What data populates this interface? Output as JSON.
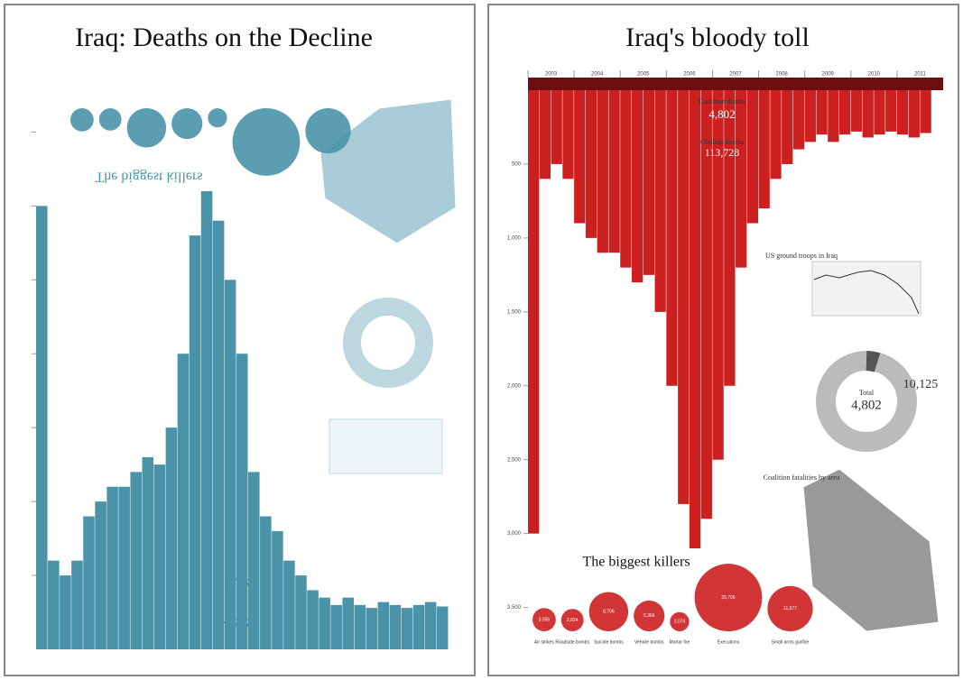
{
  "chart_data": [
    {
      "type": "bar",
      "orientation": "up",
      "title": "Iraq: Deaths on the Decline",
      "color": "#4a93a8",
      "x": [
        2003.25,
        2003.5,
        2003.75,
        2004,
        2004.25,
        2004.5,
        2004.75,
        2005,
        2005.25,
        2005.5,
        2005.75,
        2006,
        2006.25,
        2006.5,
        2006.75,
        2007,
        2007.25,
        2007.5,
        2007.75,
        2008,
        2008.25,
        2008.5,
        2008.75,
        2009,
        2009.25,
        2009.5,
        2009.75,
        2010,
        2010.25,
        2010.5,
        2010.75,
        2011,
        2011.25,
        2011.5,
        2011.75
      ],
      "values": [
        3000,
        600,
        500,
        600,
        900,
        1000,
        1100,
        1100,
        1200,
        1300,
        1250,
        1500,
        2000,
        2800,
        3100,
        2900,
        2500,
        2000,
        1200,
        900,
        800,
        600,
        500,
        400,
        350,
        300,
        350,
        300,
        280,
        320,
        300,
        280,
        300,
        320,
        290
      ],
      "xlim": [
        2003,
        2012
      ],
      "ylim": [
        0,
        3600
      ],
      "yticks": [
        500,
        1000,
        1500,
        2000,
        2500,
        3000,
        3500
      ],
      "annotations": [
        "113,728",
        "4,802"
      ],
      "killers": {
        "title": "The biggest killers",
        "values": [
          3055,
          2824,
          8706,
          5366,
          2074,
          25706,
          11577
        ]
      }
    },
    {
      "type": "bar",
      "orientation": "down",
      "title": "Iraq's bloody toll",
      "color": "#cc1f1f",
      "x": [
        2003.25,
        2003.5,
        2003.75,
        2004,
        2004.25,
        2004.5,
        2004.75,
        2005,
        2005.25,
        2005.5,
        2005.75,
        2006,
        2006.25,
        2006.5,
        2006.75,
        2007,
        2007.25,
        2007.5,
        2007.75,
        2008,
        2008.25,
        2008.5,
        2008.75,
        2009,
        2009.25,
        2009.5,
        2009.75,
        2010,
        2010.25,
        2010.5,
        2010.75,
        2011,
        2011.25,
        2011.5,
        2011.75
      ],
      "values": [
        3000,
        600,
        500,
        600,
        900,
        1000,
        1100,
        1100,
        1200,
        1300,
        1250,
        1500,
        2000,
        2800,
        3100,
        2900,
        2500,
        2000,
        1200,
        900,
        800,
        600,
        500,
        400,
        350,
        300,
        350,
        300,
        280,
        320,
        300,
        280,
        300,
        320,
        290
      ],
      "xlim": [
        2003,
        2012
      ],
      "xticks": [
        2003,
        2004,
        2005,
        2006,
        2007,
        2008,
        2009,
        2010,
        2011
      ],
      "ylim": [
        0,
        3600
      ],
      "yticks": [
        500,
        {
          "value": 1000,
          "label": "1,000"
        },
        {
          "value": 1500,
          "label": "1,500"
        },
        {
          "value": 2000,
          "label": "2,000"
        },
        {
          "value": 2500,
          "label": "2,500"
        },
        {
          "value": 3000,
          "label": "3,000"
        },
        {
          "value": 3500,
          "label": "3,500"
        }
      ],
      "annotations": [
        "Coalition deaths",
        "4,802",
        "Civilian deaths",
        "113,728",
        "US ground troops in Iraq",
        "10,125",
        "Total",
        "4,802",
        "Coalition fatalities by area"
      ],
      "killers": {
        "title": "The biggest killers",
        "names": [
          "Air strikes",
          "Roadside bombs",
          "Suicide bombs",
          "Vehicle bombs",
          "Mortar fire",
          "Executions",
          "Small arms gunfire"
        ],
        "values": [
          3055,
          2824,
          8706,
          5366,
          2074,
          25706,
          11577
        ],
        "value_labels": [
          "3,055",
          "2,824",
          "8,706",
          "5,366",
          "2,074",
          "25,706",
          "11,577"
        ]
      }
    }
  ]
}
